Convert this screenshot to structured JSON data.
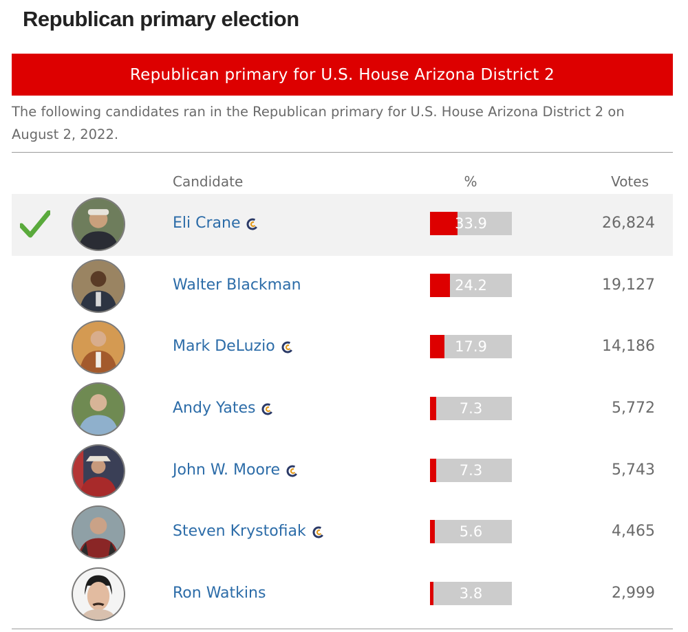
{
  "heading": "Republican primary election",
  "banner": "Republican primary for U.S. House Arizona District 2",
  "description": "The following candidates ran in the Republican primary for U.S. House Arizona District 2 on August 2, 2022.",
  "columns": {
    "candidate": "Candidate",
    "percent": "%",
    "votes": "Votes"
  },
  "colors": {
    "accent": "#dd0000",
    "bar_track": "#cccccc",
    "link": "#2c6ca8",
    "winner_check": "#5aaa3c"
  },
  "icons": {
    "winner": "checkmark-icon",
    "endorsement": "ballotpedia-c-icon"
  },
  "candidates": [
    {
      "name": "Eli Crane",
      "percent": 33.9,
      "percent_label": "33.9",
      "votes": "26,824",
      "winner": true,
      "endorsement_icon": true
    },
    {
      "name": "Walter Blackman",
      "percent": 24.2,
      "percent_label": "24.2",
      "votes": "19,127",
      "winner": false,
      "endorsement_icon": false
    },
    {
      "name": "Mark DeLuzio",
      "percent": 17.9,
      "percent_label": "17.9",
      "votes": "14,186",
      "winner": false,
      "endorsement_icon": true
    },
    {
      "name": "Andy Yates",
      "percent": 7.3,
      "percent_label": "7.3",
      "votes": "5,772",
      "winner": false,
      "endorsement_icon": true
    },
    {
      "name": "John W. Moore",
      "percent": 7.3,
      "percent_label": "7.3",
      "votes": "5,743",
      "winner": false,
      "endorsement_icon": true
    },
    {
      "name": "Steven Krystofiak",
      "percent": 5.6,
      "percent_label": "5.6",
      "votes": "4,465",
      "winner": false,
      "endorsement_icon": true
    },
    {
      "name": "Ron Watkins",
      "percent": 3.8,
      "percent_label": "3.8",
      "votes": "2,999",
      "winner": false,
      "endorsement_icon": false
    }
  ]
}
